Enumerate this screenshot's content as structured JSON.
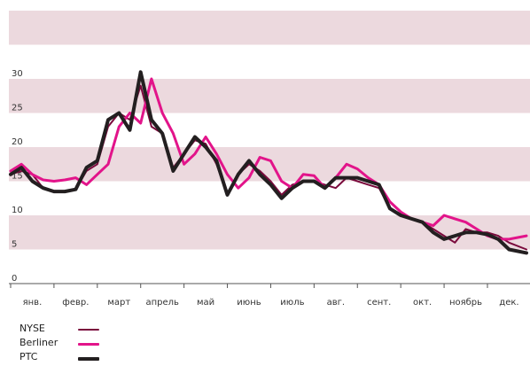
{
  "chart_data": {
    "type": "line",
    "title": "",
    "xlabel": "",
    "ylabel": "",
    "ylim": [
      0,
      40
    ],
    "yticks": [
      0,
      5,
      10,
      15,
      20,
      25,
      30
    ],
    "xlim": [
      0,
      11.9
    ],
    "months": [
      "янв.",
      "февр.",
      "март",
      "апрель",
      "май",
      "июнь",
      "июль",
      "авг.",
      "сент.",
      "окт.",
      "ноябрь",
      "дек."
    ],
    "grid_bands": [
      [
        5,
        10
      ],
      [
        15,
        20
      ],
      [
        25,
        30
      ],
      [
        35,
        40
      ]
    ],
    "legend_position": "bottom-left",
    "series": [
      {
        "name": "NYSE",
        "color": "#7a0a3c",
        "width": 2,
        "x": [
          0,
          0.25,
          0.5,
          0.75,
          1.0,
          1.25,
          1.5,
          1.75,
          2.0,
          2.25,
          2.5,
          2.75,
          3.0,
          3.25,
          3.5,
          3.75,
          4.0,
          4.25,
          4.5,
          4.75,
          5.0,
          5.25,
          5.5,
          5.75,
          6.0,
          6.25,
          6.5,
          6.75,
          7.0,
          7.25,
          7.5,
          7.75,
          8.0,
          8.25,
          8.5,
          8.75,
          9.0,
          9.25,
          9.5,
          9.75,
          10.0,
          10.25,
          10.5,
          10.75,
          11.0,
          11.25,
          11.5,
          11.9
        ],
        "values": [
          16,
          16.5,
          16,
          14,
          13.5,
          13.5,
          13.8,
          16.5,
          17.5,
          23,
          25,
          24,
          29,
          23,
          22,
          17,
          19,
          21,
          20.5,
          17.5,
          13,
          16,
          17.5,
          16.5,
          15,
          13,
          14.5,
          15,
          15,
          14.5,
          14,
          15.5,
          15,
          14.5,
          14,
          11,
          10,
          9.5,
          9,
          8,
          7,
          6,
          8,
          7.5,
          7.5,
          7,
          6,
          5
        ]
      },
      {
        "name": "Berliner",
        "color": "#e2148a",
        "width": 3,
        "x": [
          0,
          0.25,
          0.5,
          0.75,
          1.0,
          1.25,
          1.5,
          1.75,
          2.0,
          2.25,
          2.5,
          2.75,
          3.0,
          3.25,
          3.5,
          3.75,
          4.0,
          4.25,
          4.5,
          4.75,
          5.0,
          5.25,
          5.5,
          5.75,
          6.0,
          6.25,
          6.5,
          6.75,
          7.0,
          7.25,
          7.5,
          7.75,
          8.0,
          8.25,
          8.5,
          8.75,
          9.0,
          9.25,
          9.5,
          9.75,
          10.0,
          10.25,
          10.5,
          10.75,
          11.0,
          11.25,
          11.5,
          11.9
        ],
        "values": [
          16.5,
          17.5,
          16,
          15.2,
          15,
          15.2,
          15.5,
          14.5,
          16,
          17.5,
          23,
          25,
          23.5,
          30,
          25,
          22,
          17.5,
          19,
          21.5,
          19,
          16,
          14,
          15.5,
          18.5,
          18,
          15,
          14,
          16,
          15.8,
          14,
          15.5,
          17.5,
          16.8,
          15.5,
          14.5,
          12,
          10.5,
          9.5,
          9,
          8.5,
          10,
          9.5,
          9,
          8,
          7,
          6.5,
          6.5,
          7
        ]
      },
      {
        "name": "PTC",
        "color": "#231f20",
        "width": 4,
        "x": [
          0,
          0.25,
          0.5,
          0.75,
          1.0,
          1.25,
          1.5,
          1.75,
          2.0,
          2.25,
          2.5,
          2.75,
          3.0,
          3.25,
          3.5,
          3.75,
          4.0,
          4.25,
          4.5,
          4.75,
          5.0,
          5.25,
          5.5,
          5.75,
          6.0,
          6.25,
          6.5,
          6.75,
          7.0,
          7.25,
          7.5,
          7.75,
          8.0,
          8.25,
          8.5,
          8.75,
          9.0,
          9.25,
          9.5,
          9.75,
          10.0,
          10.25,
          10.5,
          10.75,
          11.0,
          11.25,
          11.5,
          11.9
        ],
        "values": [
          16,
          17,
          15,
          14,
          13.5,
          13.5,
          13.8,
          17,
          18,
          24,
          25,
          22.5,
          31,
          24,
          22,
          16.5,
          19,
          21.5,
          20,
          18,
          13,
          16,
          18,
          16,
          14.5,
          12.5,
          14,
          15,
          15,
          14,
          15.5,
          15.5,
          15.5,
          15,
          14.5,
          11,
          10,
          9.5,
          9,
          7.5,
          6.5,
          7,
          7.5,
          7.5,
          7.2,
          6.5,
          5,
          4.5
        ]
      }
    ]
  }
}
